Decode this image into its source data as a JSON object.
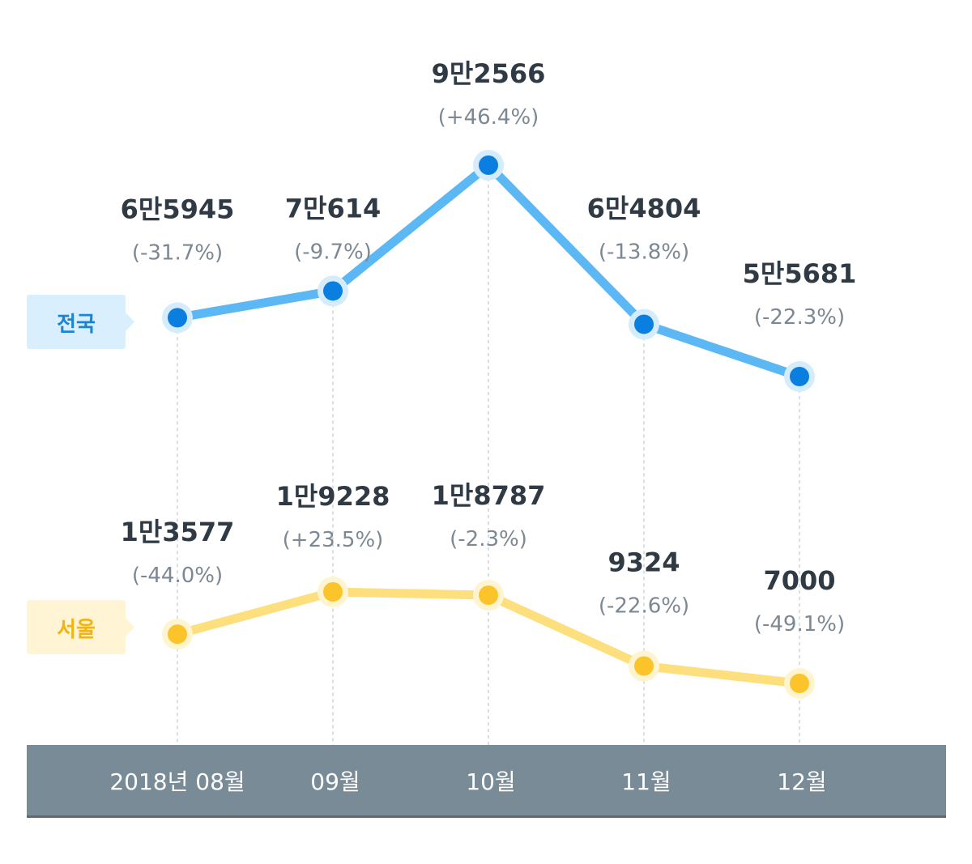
{
  "chart_data": {
    "type": "line",
    "categories": [
      "2018년 08월",
      "09월",
      "10월",
      "11월",
      "12월"
    ],
    "series": [
      {
        "name": "전국",
        "values": [
          65945,
          70614,
          92566,
          64804,
          55681
        ],
        "value_labels": [
          "6만5945",
          "7만614",
          "9만2566",
          "6만4804",
          "5만5681"
        ],
        "change_labels": [
          "(-31.7%)",
          "(-9.7%)",
          "(+46.4%)",
          "(-13.8%)",
          "(-22.3%)"
        ],
        "colors": {
          "line": "#5bb8f5",
          "point": "#0a7fe0",
          "halo": "#d4ecfc",
          "legend_bg": "#d9effd",
          "legend_text": "#1a85d6"
        }
      },
      {
        "name": "서울",
        "values": [
          13577,
          19228,
          18787,
          9324,
          7000
        ],
        "value_labels": [
          "1만3577",
          "1만9228",
          "1만8787",
          "9324",
          "7000"
        ],
        "change_labels": [
          "(-44.0%)",
          "(+23.5%)",
          "(-2.3%)",
          "(-22.6%)",
          "(-49.1%)"
        ],
        "colors": {
          "line": "#fedf7e",
          "point": "#fbc42a",
          "halo": "#fff4d0",
          "legend_bg": "#fff4d4",
          "legend_text": "#f2b414"
        }
      }
    ],
    "axis_bar_color": "#798b97",
    "grid": false
  }
}
